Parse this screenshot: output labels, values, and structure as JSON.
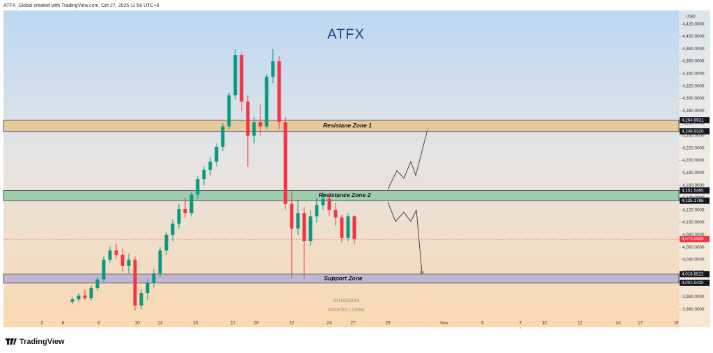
{
  "header": "ATFX_Global created with TradingView.com, Oct 27, 2025 11:56 UTC+8",
  "logo": "ATFX",
  "footer": "TradingView",
  "chart_data": {
    "type": "candlestick",
    "currency": "USD",
    "watermark": [
      "27/10/2025",
      "XAUUSD | 240M"
    ],
    "up_color": "#089981",
    "down_color": "#f23645",
    "x": [
      22,
      24,
      26,
      28,
      30,
      32,
      34,
      36,
      38,
      40,
      42,
      44,
      46,
      48,
      50,
      52,
      54,
      56,
      58,
      60,
      62,
      64,
      66,
      68,
      70,
      72,
      74,
      76,
      78,
      80,
      82,
      84,
      86,
      88,
      90,
      92,
      94,
      96,
      98,
      100,
      102,
      104,
      106,
      108,
      110,
      112
    ],
    "open": [
      3972,
      3976,
      3982,
      3978,
      3994,
      4008,
      4040,
      4055,
      4048,
      4030,
      4040,
      3966,
      3986,
      4002,
      4018,
      4055,
      4080,
      4098,
      4122,
      4115,
      4145,
      4170,
      4185,
      4198,
      4222,
      4255,
      4305,
      4370,
      4295,
      4240,
      4262,
      4255,
      4335,
      4360,
      4262,
      4130,
      4090,
      4115,
      4070,
      4110,
      4128,
      4138,
      4120,
      4108,
      4075,
      4110
    ],
    "high": [
      3980,
      3986,
      3992,
      3998,
      4012,
      4045,
      4062,
      4066,
      4058,
      4050,
      4045,
      3992,
      4010,
      4025,
      4060,
      4085,
      4105,
      4130,
      4140,
      4150,
      4175,
      4190,
      4205,
      4228,
      4260,
      4310,
      4380,
      4375,
      4305,
      4270,
      4290,
      4340,
      4380,
      4368,
      4270,
      4150,
      4135,
      4125,
      4120,
      4140,
      4150,
      4148,
      4132,
      4112,
      4115,
      4112
    ],
    "low": [
      3968,
      3972,
      3975,
      3974,
      3990,
      4004,
      4035,
      4042,
      4020,
      4018,
      3958,
      3960,
      3975,
      3995,
      4012,
      4048,
      4070,
      4090,
      4108,
      4110,
      4138,
      4160,
      4175,
      4190,
      4215,
      4250,
      4298,
      4280,
      4190,
      4228,
      4240,
      4250,
      4325,
      4250,
      4120,
      4010,
      4080,
      4010,
      4062,
      4100,
      4120,
      4110,
      4095,
      4068,
      4070,
      4065
    ],
    "close": [
      3976,
      3982,
      3978,
      3994,
      4008,
      4040,
      4055,
      4048,
      4030,
      4040,
      3966,
      3986,
      4002,
      4018,
      4055,
      4080,
      4098,
      4122,
      4115,
      4145,
      4170,
      4185,
      4198,
      4222,
      4255,
      4305,
      4370,
      4295,
      4240,
      4262,
      4255,
      4335,
      4360,
      4262,
      4130,
      4090,
      4115,
      4070,
      4110,
      4128,
      4138,
      4120,
      4108,
      4075,
      4110,
      4073.09
    ],
    "xlim": [
      0,
      215.6
    ],
    "xticks": [
      {
        "value": 12.2,
        "label": "3"
      },
      {
        "value": 19,
        "label": "6"
      },
      {
        "value": 30.4,
        "label": "8"
      },
      {
        "value": 42.7,
        "label": "10"
      },
      {
        "value": 50,
        "label": "13"
      },
      {
        "value": 61.3,
        "label": "15"
      },
      {
        "value": 73.3,
        "label": "17"
      },
      {
        "value": 80.7,
        "label": "20"
      },
      {
        "value": 92,
        "label": "22"
      },
      {
        "value": 104,
        "label": "24"
      },
      {
        "value": 111.6,
        "label": "27"
      },
      {
        "value": 122.7,
        "label": "29"
      },
      {
        "value": 140.7,
        "label": "Nov"
      },
      {
        "value": 152.9,
        "label": "5"
      },
      {
        "value": 165,
        "label": "7"
      },
      {
        "value": 172.7,
        "label": "10"
      },
      {
        "value": 184,
        "label": "12"
      },
      {
        "value": 196.2,
        "label": "14"
      },
      {
        "value": 203.3,
        "label": "17"
      },
      {
        "value": 214.7,
        "label": "19"
      }
    ],
    "ylim": [
      3931,
      4442
    ],
    "yticks": [
      {
        "value": 3960,
        "label": "3,960.0000"
      },
      {
        "value": 3980,
        "label": "3,980.0000"
      },
      {
        "value": 4000,
        "label": "4,000.0000"
      },
      {
        "value": 4020,
        "label": "4,020.0000"
      },
      {
        "value": 4040,
        "label": "4,040.0000"
      },
      {
        "value": 4060,
        "label": "4,060.0000"
      },
      {
        "value": 4080,
        "label": "4,080.0000"
      },
      {
        "value": 4100,
        "label": "4,100.0000"
      },
      {
        "value": 4120,
        "label": "4,120.0000"
      },
      {
        "value": 4140,
        "label": "4,140.0000"
      },
      {
        "value": 4160,
        "label": "4,160.0000"
      },
      {
        "value": 4180,
        "label": "4,180.0000"
      },
      {
        "value": 4200,
        "label": "4,200.0000"
      },
      {
        "value": 4220,
        "label": "4,220.0000"
      },
      {
        "value": 4240,
        "label": "4,240.0000"
      },
      {
        "value": 4260,
        "label": "4,260.0000"
      },
      {
        "value": 4280,
        "label": "4,280.0000"
      },
      {
        "value": 4300,
        "label": "4,300.0000"
      },
      {
        "value": 4320,
        "label": "4,320.0000"
      },
      {
        "value": 4340,
        "label": "4,340.0000"
      },
      {
        "value": 4360,
        "label": "4,360.0000"
      },
      {
        "value": 4380,
        "label": "4,380.0000"
      },
      {
        "value": 4400,
        "label": "4,400.0000"
      },
      {
        "value": 4420,
        "label": "4,420.0000"
      }
    ],
    "zones": [
      {
        "name": "Resistane Zone 1",
        "range": [
          4246.932,
          4264.9931
        ],
        "range_labels": [
          "4,246.9320",
          "4,264.9931"
        ],
        "color": "#e8c48e"
      },
      {
        "name": "Resistance Zone 2",
        "range": [
          4135.1786,
          4151.5465
        ],
        "range_labels": [
          "4,135.1786",
          "4,151.5465"
        ],
        "color": "#8fc9a8"
      },
      {
        "name": "Support Zone",
        "range": [
          4002.542,
          4016.6522
        ],
        "range_labels": [
          "4,002.5420",
          "4,016.6522"
        ],
        "color": "#b4b2d6"
      }
    ],
    "last_price": 4073.09,
    "last_price_label": "4,073.0900"
  }
}
